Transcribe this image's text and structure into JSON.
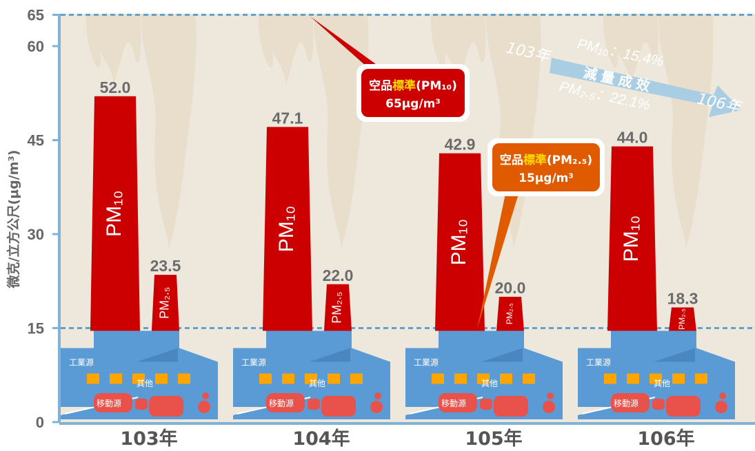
{
  "chart_data": {
    "type": "bar",
    "ylabel": "微克/立方公尺(μg/m³)",
    "ylim": [
      0,
      65
    ],
    "yticks": [
      0,
      15,
      30,
      45,
      60,
      65
    ],
    "grid": false,
    "categories": [
      "103年",
      "104年",
      "105年",
      "106年"
    ],
    "series": [
      {
        "name": "PM₁₀",
        "values": [
          52.0,
          47.1,
          42.9,
          44.0
        ],
        "value_labels": [
          "52.0",
          "47.1",
          "42.9",
          "44.0"
        ]
      },
      {
        "name": "PM₂.₅",
        "values": [
          23.5,
          22.0,
          20.0,
          18.3
        ],
        "value_labels": [
          "23.5",
          "22.0",
          "20.0",
          "18.3"
        ]
      }
    ],
    "reference_lines": [
      {
        "value": 65,
        "label_pre": "空品",
        "label_hl": "標準",
        "label_post": "(PM₁₀)",
        "label_value": "65μg/m³"
      },
      {
        "value": 15,
        "label_pre": "空品",
        "label_hl": "標準",
        "label_post": "(PM₂.₅)",
        "label_value": "15μg/m³"
      }
    ],
    "reduction": {
      "from": "103年",
      "to": "106年",
      "title": "減量成效",
      "pm10": "PM₁₀：15.4%",
      "pm25": "PM₂.₅：22.1%"
    },
    "factory_labels": {
      "industrial": "工業源",
      "mobile": "移動源",
      "other": "其他"
    }
  },
  "colors": {
    "pm10": "#cc0000",
    "pm25": "#cc0000",
    "factory": "#5b9bd5",
    "smoke": "#e6dcc8",
    "background": "#ede7dc",
    "axis": "#7fb2d6",
    "ref_line": "#6a9fc4",
    "callout_pm10": "#cc0000",
    "callout_pm25": "#e05a00",
    "highlight": "#ffd700",
    "window": "#ffa500",
    "car": "#e8524a",
    "arrow": "#a9cde3"
  }
}
